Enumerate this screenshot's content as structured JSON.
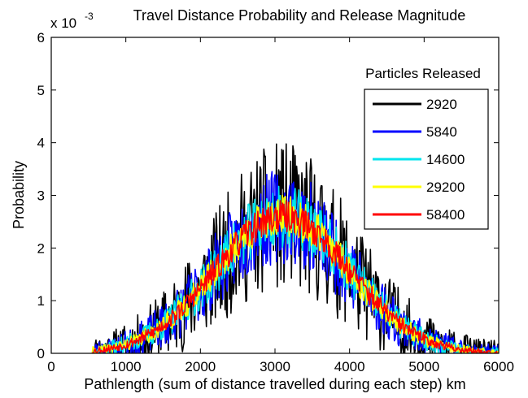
{
  "chart_data": {
    "type": "line",
    "title": "Travel Distance Probability and Release Magnitude",
    "xlabel": "Pathlength (sum of distance travelled during each step) km",
    "ylabel": "Probability",
    "y_exponent_label": "x 10",
    "y_exponent_power": "-3",
    "xlim": [
      0,
      6000
    ],
    "ylim": [
      0,
      0.006
    ],
    "x_ticks": [
      0,
      1000,
      2000,
      3000,
      4000,
      5000,
      6000
    ],
    "x_tick_labels": [
      "0",
      "1000",
      "2000",
      "3000",
      "4000",
      "5000",
      "6000"
    ],
    "y_ticks": [
      0,
      0.001,
      0.002,
      0.003,
      0.004,
      0.005,
      0.006
    ],
    "y_tick_labels": [
      "0",
      "1",
      "2",
      "3",
      "4",
      "5",
      "6"
    ],
    "grid": false,
    "legend": {
      "title": "Particles Released",
      "placement": "top-right"
    },
    "series": [
      {
        "name": "2920",
        "color": "#000000",
        "x_range": [
          550,
          6000
        ],
        "peak_x": 3100,
        "peak_y": 0.0026,
        "spread": 900,
        "noise": 0.0014,
        "max_y": 0.0056,
        "seed": 11
      },
      {
        "name": "5840",
        "color": "#0000ff",
        "x_range": [
          550,
          6000
        ],
        "peak_x": 3100,
        "peak_y": 0.0026,
        "spread": 900,
        "noise": 0.0009,
        "max_y": 0.0052,
        "seed": 23
      },
      {
        "name": "14600",
        "color": "#00e5ee",
        "x_range": [
          550,
          6000
        ],
        "peak_x": 3100,
        "peak_y": 0.0026,
        "spread": 900,
        "noise": 0.0006,
        "max_y": 0.004,
        "seed": 37
      },
      {
        "name": "29200",
        "color": "#ffff00",
        "x_range": [
          550,
          6000
        ],
        "peak_x": 3100,
        "peak_y": 0.0026,
        "spread": 900,
        "noise": 0.0004,
        "max_y": 0.0034,
        "seed": 41
      },
      {
        "name": "58400",
        "color": "#ff0000",
        "x_range": [
          550,
          6000
        ],
        "peak_x": 3100,
        "peak_y": 0.0026,
        "spread": 900,
        "noise": 0.0003,
        "max_y": 0.0031,
        "seed": 53
      }
    ]
  }
}
